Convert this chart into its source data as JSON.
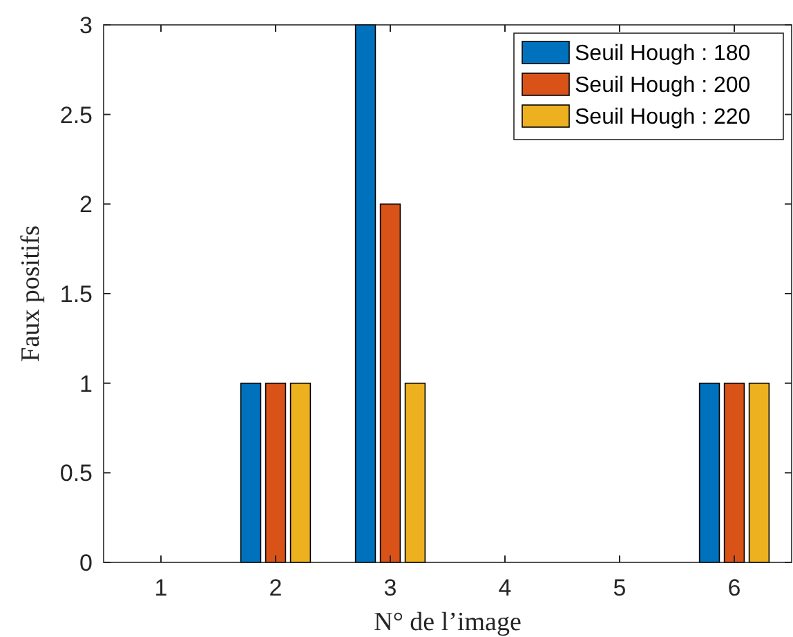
{
  "chart_data": {
    "type": "bar",
    "xlabel": "N° de l’image",
    "ylabel": "Faux positifs",
    "categories": [
      "1",
      "2",
      "3",
      "4",
      "5",
      "6"
    ],
    "series": [
      {
        "name": "Seuil Hough : 180",
        "color": "#0072bd",
        "values": [
          0,
          1,
          3,
          0,
          0,
          1
        ]
      },
      {
        "name": "Seuil Hough : 200",
        "color": "#d95319",
        "values": [
          0,
          1,
          2,
          0,
          0,
          1
        ]
      },
      {
        "name": "Seuil Hough : 220",
        "color": "#edb120",
        "values": [
          0,
          1,
          1,
          0,
          0,
          1
        ]
      }
    ],
    "ylim": [
      0,
      3
    ],
    "yticks": [
      0,
      0.5,
      1,
      1.5,
      2,
      2.5,
      3
    ],
    "legend": "top right",
    "grid": false
  }
}
